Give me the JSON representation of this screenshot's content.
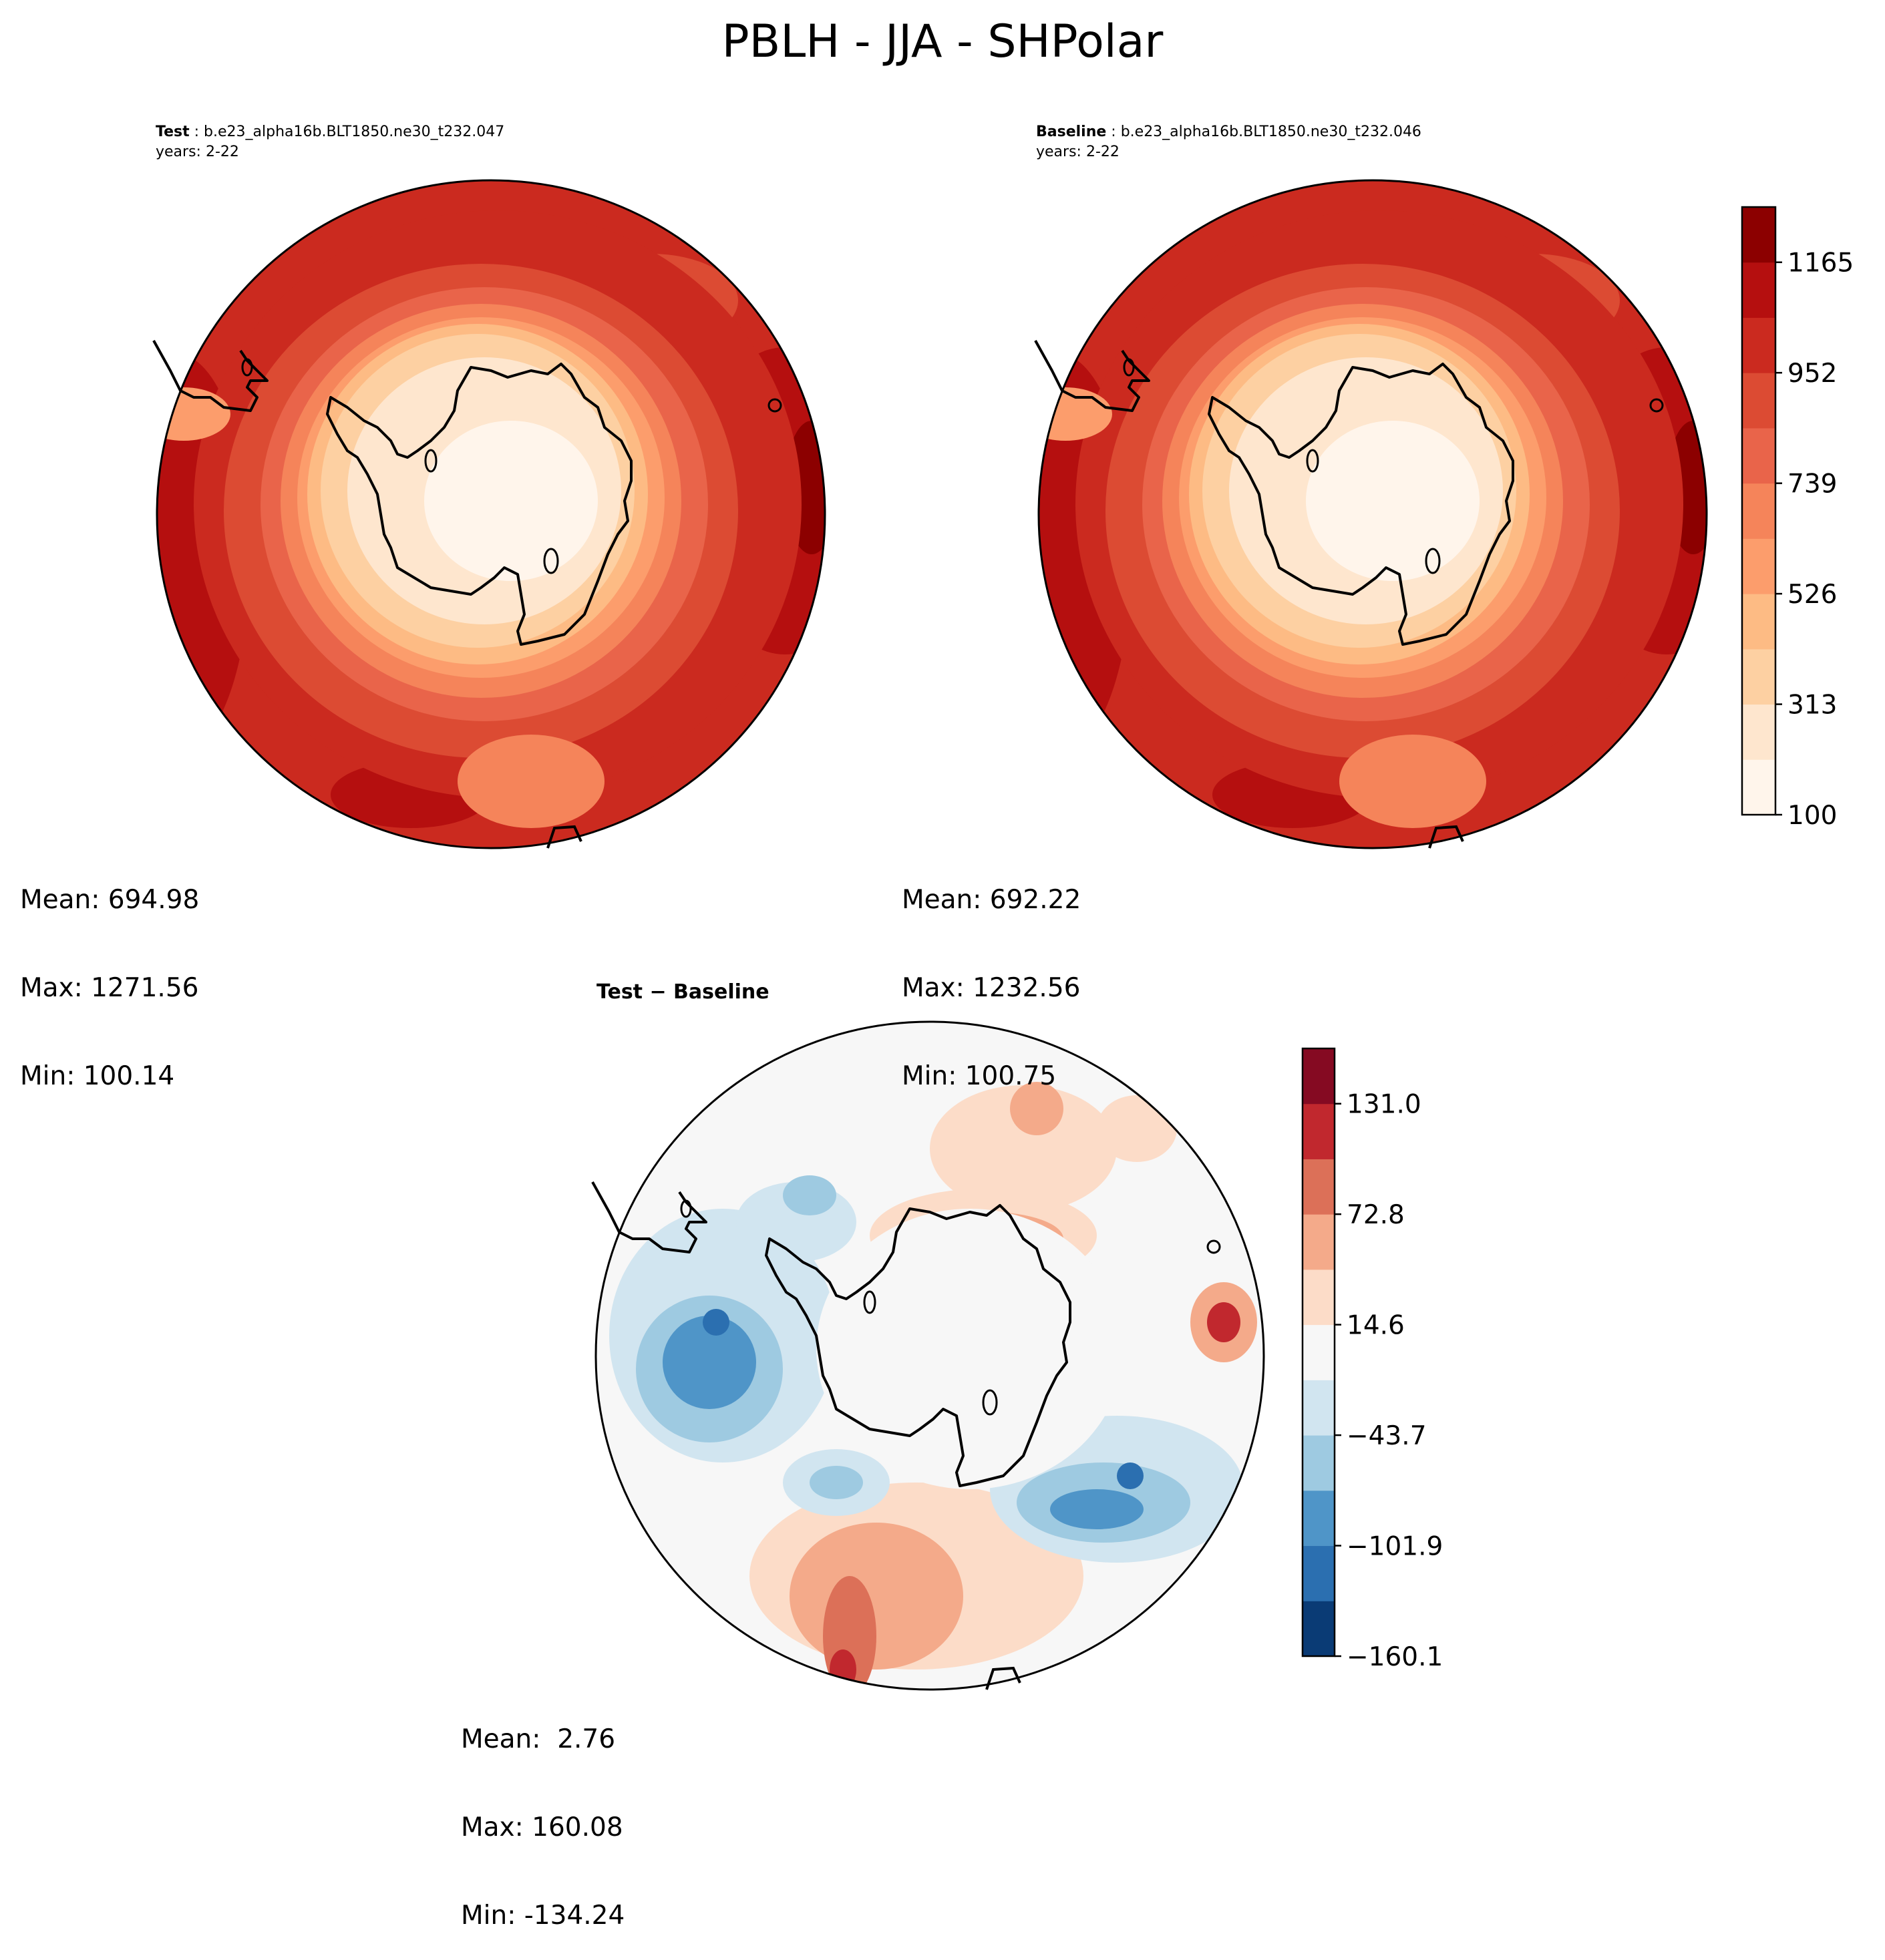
{
  "title": "PBLH - JJA - SHPolar",
  "colors": {
    "field": [
      "#fff5eb",
      "#fee6ce",
      "#fdd0a2",
      "#fdbb84",
      "#fc9d6c",
      "#f5845a",
      "#e9644a",
      "#dc4b33",
      "#cb2a1f",
      "#b50f0f",
      "#8c0000"
    ],
    "diff": [
      "#0a3b75",
      "#2b6fb0",
      "#4f95c8",
      "#9ecae1",
      "#d1e5f0",
      "#f7f7f7",
      "#fcdcc8",
      "#f4aa8a",
      "#dc7058",
      "#c1282e",
      "#850a22"
    ]
  },
  "panels": {
    "test": {
      "label_bold": "Test",
      "label_case": " : b.e23_alpha16b.BLT1850.ne30_t232.047",
      "years": "years: 2-22",
      "mean": "Mean: 694.98",
      "max": "Max: 1271.56",
      "min": "Min: 100.14"
    },
    "baseline": {
      "label_bold": "Baseline",
      "label_case": " : b.e23_alpha16b.BLT1850.ne30_t232.046",
      "years": "years: 2-22",
      "mean": "Mean: 692.22",
      "max": "Max: 1232.56",
      "min": "Min: 100.75"
    },
    "diff": {
      "title": "Test − Baseline",
      "mean": "Mean:  2.76",
      "max": "Max: 160.08",
      "min": "Min: -134.24"
    }
  },
  "chart_data": [
    {
      "type": "heatmap",
      "projection": "south-polar-stereographic",
      "title": "Test",
      "case": "b.e23_alpha16b.BLT1850.ne30_t232.047",
      "years": "2-22",
      "variable": "PBLH",
      "season": "JJA",
      "stats": {
        "mean": 694.98,
        "max": 1271.56,
        "min": 100.14
      },
      "colorbar": {
        "ticks": [
          "1165",
          "952",
          "739",
          "526",
          "313",
          "100"
        ],
        "range": [
          100,
          1271.56
        ],
        "levels": 11
      }
    },
    {
      "type": "heatmap",
      "projection": "south-polar-stereographic",
      "title": "Baseline",
      "case": "b.e23_alpha16b.BLT1850.ne30_t232.046",
      "years": "2-22",
      "variable": "PBLH",
      "season": "JJA",
      "stats": {
        "mean": 692.22,
        "max": 1232.56,
        "min": 100.75
      }
    },
    {
      "type": "heatmap",
      "projection": "south-polar-stereographic",
      "title": "Test − Baseline",
      "stats": {
        "mean": 2.76,
        "max": 160.08,
        "min": -134.24
      },
      "colorbar": {
        "ticks": [
          "131.0",
          "72.8",
          "14.6",
          "−43.7",
          "−101.9",
          "−160.1"
        ],
        "range": [
          -160.1,
          160.1
        ],
        "levels": 11
      }
    }
  ]
}
